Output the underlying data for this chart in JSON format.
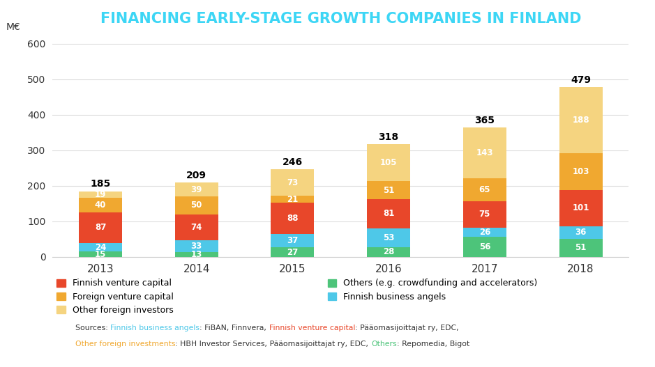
{
  "title": "FINANCING EARLY-STAGE GROWTH COMPANIES IN FINLAND",
  "title_color": "#3DD6F5",
  "years": [
    "2013",
    "2014",
    "2015",
    "2016",
    "2017",
    "2018"
  ],
  "totals": [
    185,
    209,
    246,
    318,
    365,
    479
  ],
  "segment_order": [
    "Others (e.g. crowdfunding and accelerators)",
    "Finnish business angels",
    "Finnish venture capital",
    "Foreign venture capital",
    "Other foreign investors"
  ],
  "segments": {
    "Others (e.g. crowdfunding and accelerators)": {
      "values": [
        15,
        13,
        27,
        28,
        56,
        51
      ],
      "color": "#4DC47A"
    },
    "Finnish business angels": {
      "values": [
        24,
        33,
        37,
        53,
        26,
        36
      ],
      "color": "#4EC8E8"
    },
    "Finnish venture capital": {
      "values": [
        87,
        74,
        88,
        81,
        75,
        101
      ],
      "color": "#E8472A"
    },
    "Foreign venture capital": {
      "values": [
        40,
        50,
        21,
        51,
        65,
        103
      ],
      "color": "#F0A830"
    },
    "Other foreign investors": {
      "values": [
        19,
        39,
        73,
        105,
        143,
        188
      ],
      "color": "#F5D480"
    }
  },
  "ylabel": "M€",
  "ylim": [
    0,
    620
  ],
  "yticks": [
    0,
    100,
    200,
    300,
    400,
    500,
    600
  ],
  "background_color": "#FFFFFF",
  "legend_order": [
    "Finnish venture capital",
    "Foreign venture capital",
    "Other foreign investors",
    "Others (e.g. crowdfunding and accelerators)",
    "Finnish business angels"
  ],
  "bar_width": 0.45,
  "source_parts_line1": [
    {
      "text": "Sources: ",
      "color": "#333333"
    },
    {
      "text": "Finnish business angels",
      "color": "#4EC8E8"
    },
    {
      "text": ": FiBAN, Finnvera, ",
      "color": "#333333"
    },
    {
      "text": "Finnish venture capital",
      "color": "#E8472A"
    },
    {
      "text": ": Pääomasijoittajat ry, EDC,",
      "color": "#333333"
    }
  ],
  "source_parts_line2": [
    {
      "text": "Other foreign investments",
      "color": "#F0A830"
    },
    {
      "text": ": HBH Investor Services, Pääomasijoittajat ry, EDC, ",
      "color": "#333333"
    },
    {
      "text": "Others",
      "color": "#4DC47A"
    },
    {
      "text": ": Repomedia, Bigot",
      "color": "#333333"
    }
  ]
}
